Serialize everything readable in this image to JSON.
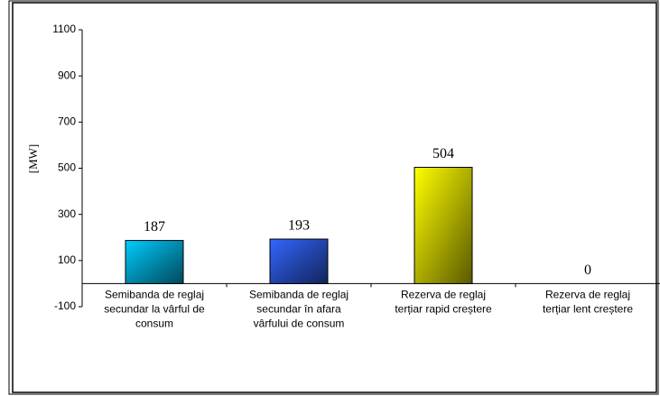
{
  "chart_data": {
    "type": "bar",
    "y_label": "[MW]",
    "categories": [
      "Semibanda de reglaj\nsecundar la vârful de\nconsum",
      "Semibanda de reglaj\nsecundar în afara\nvârfului de consum",
      "Rezerva de reglaj\nterțiar rapid creștere",
      "Rezerva de reglaj\nterțiar lent creștere"
    ],
    "values": [
      187,
      193,
      504,
      0
    ],
    "colors": [
      "#00ccff",
      "#3366ff",
      "#ffff00",
      "#999999"
    ],
    "ylim": [
      -100,
      1100
    ],
    "yticks": [
      -100,
      100,
      300,
      500,
      700,
      900,
      1100
    ]
  }
}
